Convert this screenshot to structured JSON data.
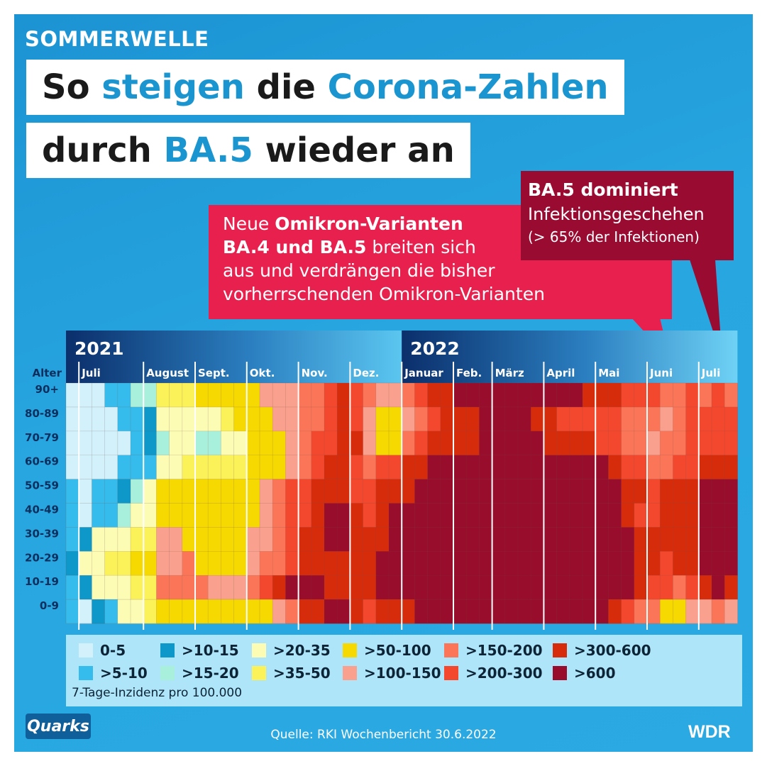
{
  "header": {
    "overline": "SOMMERWELLE",
    "title_line1": [
      {
        "text": "So ",
        "hl": false
      },
      {
        "text": "steigen",
        "hl": true
      },
      {
        "text": " die ",
        "hl": false
      },
      {
        "text": "Corona-Zahlen",
        "hl": true
      }
    ],
    "title_line2": [
      {
        "text": "durch ",
        "hl": false
      },
      {
        "text": "BA.5",
        "hl": true
      },
      {
        "text": " wieder an",
        "hl": false
      }
    ]
  },
  "callouts": {
    "omikron_lines": [
      [
        {
          "text": "Neue ",
          "b": false
        },
        {
          "text": "Omikron-Varianten",
          "b": true
        }
      ],
      [
        {
          "text": "BA.4 und BA.5",
          "b": true
        },
        {
          "text": " breiten sich",
          "b": false
        }
      ],
      [
        {
          "text": "aus und verdrängen die bisher",
          "b": false
        }
      ],
      [
        {
          "text": "vorherrschenden Omikron-Varianten",
          "b": false
        }
      ]
    ],
    "ba5_title": "BA.5 dominiert",
    "ba5_line2": "Infektionsgeschehen",
    "ba5_line3": "(> 65% der Infektionen)",
    "colors": {
      "omikron": "#e7204d",
      "ba5": "#9a0b32"
    }
  },
  "chart_data": {
    "type": "heatmap",
    "metric": "7-Tage-Inzidenz pro 100.000",
    "y_axis_title": "Alter",
    "age_groups": [
      "90+",
      "80-89",
      "70-79",
      "60-69",
      "50-59",
      "40-49",
      "30-39",
      "20-29",
      "10-19",
      "0-9"
    ],
    "years": [
      {
        "label": "2021",
        "start_week": 0
      },
      {
        "label": "2022",
        "start_week": 26
      }
    ],
    "months": [
      {
        "label": "Juli",
        "week": 1
      },
      {
        "label": "August",
        "week": 6
      },
      {
        "label": "Sept.",
        "week": 10
      },
      {
        "label": "Okt.",
        "week": 14
      },
      {
        "label": "Nov.",
        "week": 18
      },
      {
        "label": "Dez.",
        "week": 22
      },
      {
        "label": "Januar",
        "week": 26
      },
      {
        "label": "Feb.",
        "week": 30
      },
      {
        "label": "März",
        "week": 33
      },
      {
        "label": "April",
        "week": 37
      },
      {
        "label": "Mai",
        "week": 41
      },
      {
        "label": "Juni",
        "week": 45
      },
      {
        "label": "Juli",
        "week": 49
      }
    ],
    "weeks": 52,
    "legend": [
      {
        "label": "0-5",
        "color": "#d2f1fb"
      },
      {
        "label": ">5-10",
        "color": "#35bcec"
      },
      {
        "label": ">10-15",
        "color": "#0e97c9"
      },
      {
        "label": ">15-20",
        "color": "#a9f0dc"
      },
      {
        "label": ">20-35",
        "color": "#fcfcb4"
      },
      {
        "label": ">35-50",
        "color": "#fbf25a"
      },
      {
        "label": ">50-100",
        "color": "#f6d900"
      },
      {
        "label": ">100-150",
        "color": "#f9a08e"
      },
      {
        "label": ">150-200",
        "color": "#fb7558"
      },
      {
        "label": ">200-300",
        "color": "#f3482d"
      },
      {
        "label": ">300-600",
        "color": "#d62c0c"
      },
      {
        "label": ">600",
        "color": "#980c2c"
      }
    ],
    "class_matrix": [
      [
        0,
        0,
        0,
        1,
        1,
        3,
        3,
        5,
        5,
        5,
        6,
        6,
        6,
        6,
        6,
        7,
        7,
        7,
        8,
        8,
        9,
        10,
        9,
        8,
        7,
        7,
        8,
        9,
        10,
        10,
        11,
        11,
        11,
        11,
        11,
        11,
        11,
        11,
        11,
        11,
        10,
        10,
        10,
        9,
        9,
        9,
        8,
        8,
        9,
        8,
        9,
        8
      ],
      [
        0,
        0,
        0,
        0,
        1,
        1,
        2,
        4,
        4,
        4,
        4,
        4,
        5,
        6,
        6,
        6,
        7,
        7,
        8,
        8,
        9,
        10,
        9,
        7,
        6,
        6,
        7,
        8,
        9,
        10,
        10,
        10,
        11,
        11,
        11,
        11,
        10,
        10,
        9,
        9,
        9,
        9,
        9,
        8,
        8,
        8,
        7,
        8,
        9,
        9,
        9,
        9
      ],
      [
        0,
        0,
        0,
        0,
        0,
        1,
        2,
        3,
        4,
        4,
        3,
        3,
        4,
        4,
        6,
        6,
        6,
        7,
        8,
        9,
        9,
        10,
        10,
        7,
        6,
        6,
        8,
        9,
        10,
        10,
        10,
        10,
        11,
        11,
        11,
        11,
        11,
        10,
        10,
        10,
        10,
        9,
        9,
        8,
        8,
        7,
        8,
        8,
        9,
        9,
        9,
        9
      ],
      [
        0,
        0,
        0,
        0,
        1,
        1,
        1,
        4,
        4,
        5,
        5,
        5,
        5,
        5,
        6,
        6,
        6,
        7,
        8,
        9,
        10,
        10,
        9,
        8,
        9,
        9,
        10,
        10,
        11,
        11,
        11,
        11,
        11,
        11,
        11,
        11,
        11,
        11,
        11,
        11,
        11,
        11,
        10,
        9,
        9,
        8,
        8,
        9,
        9,
        10,
        10,
        10
      ],
      [
        1,
        0,
        1,
        1,
        2,
        3,
        4,
        6,
        6,
        6,
        6,
        6,
        6,
        6,
        6,
        7,
        8,
        9,
        9,
        10,
        10,
        10,
        9,
        9,
        10,
        10,
        10,
        11,
        11,
        11,
        11,
        11,
        11,
        11,
        11,
        11,
        11,
        11,
        11,
        11,
        11,
        11,
        11,
        10,
        10,
        9,
        10,
        10,
        10,
        11,
        11,
        11
      ],
      [
        1,
        0,
        1,
        1,
        3,
        4,
        4,
        6,
        6,
        6,
        6,
        6,
        6,
        6,
        6,
        7,
        8,
        9,
        9,
        10,
        11,
        11,
        10,
        9,
        10,
        11,
        11,
        11,
        11,
        11,
        11,
        11,
        11,
        11,
        11,
        11,
        11,
        11,
        11,
        11,
        11,
        11,
        11,
        10,
        9,
        9,
        10,
        10,
        10,
        11,
        11,
        11
      ],
      [
        1,
        2,
        4,
        4,
        4,
        5,
        5,
        7,
        7,
        6,
        6,
        6,
        6,
        6,
        7,
        7,
        8,
        9,
        10,
        10,
        11,
        11,
        10,
        10,
        10,
        11,
        11,
        11,
        11,
        11,
        11,
        11,
        11,
        11,
        11,
        11,
        11,
        11,
        11,
        11,
        11,
        11,
        11,
        11,
        10,
        10,
        10,
        10,
        10,
        11,
        11,
        11
      ],
      [
        2,
        4,
        4,
        5,
        5,
        6,
        6,
        7,
        7,
        8,
        6,
        6,
        6,
        6,
        7,
        8,
        8,
        9,
        10,
        10,
        10,
        10,
        10,
        10,
        11,
        11,
        11,
        11,
        11,
        11,
        11,
        11,
        11,
        11,
        11,
        11,
        11,
        11,
        11,
        11,
        11,
        11,
        11,
        11,
        10,
        10,
        9,
        10,
        10,
        11,
        11,
        11
      ],
      [
        1,
        2,
        4,
        4,
        4,
        5,
        5,
        8,
        8,
        8,
        8,
        7,
        7,
        7,
        8,
        9,
        10,
        11,
        11,
        11,
        10,
        10,
        10,
        10,
        11,
        11,
        11,
        11,
        11,
        11,
        11,
        11,
        11,
        11,
        11,
        11,
        11,
        11,
        11,
        11,
        11,
        11,
        11,
        11,
        10,
        9,
        9,
        8,
        9,
        10,
        11,
        10
      ],
      [
        1,
        0,
        2,
        1,
        4,
        4,
        5,
        6,
        6,
        6,
        6,
        6,
        6,
        6,
        6,
        6,
        7,
        8,
        10,
        10,
        11,
        11,
        10,
        9,
        10,
        10,
        10,
        11,
        11,
        11,
        11,
        11,
        11,
        11,
        11,
        11,
        11,
        11,
        11,
        11,
        11,
        11,
        10,
        9,
        8,
        8,
        6,
        6,
        7,
        7,
        8,
        7
      ]
    ]
  },
  "footer": {
    "source": "Quelle: RKI Wochenbericht 30.6.2022",
    "logo_quarks": "Quarks",
    "logo_wdr": "WDR"
  }
}
